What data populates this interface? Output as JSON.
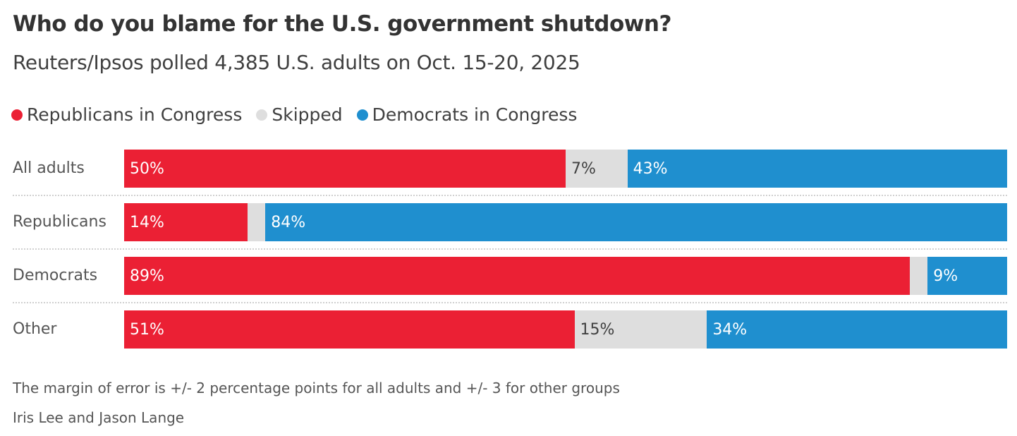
{
  "chart_data": {
    "type": "bar",
    "orientation": "horizontal-stacked",
    "title": "Who do you blame for the U.S. government shutdown?",
    "subtitle": "Reuters/Ipsos polled 4,385 U.S. adults on Oct. 15-20, 2025",
    "categories": [
      "All adults",
      "Republicans",
      "Democrats",
      "Other"
    ],
    "series": [
      {
        "name": "Republicans in Congress",
        "color": "#eb2034",
        "text_color": "#ffffff",
        "values": [
          50,
          14,
          89,
          51
        ],
        "labels": [
          "50%",
          "14%",
          "89%",
          "51%"
        ]
      },
      {
        "name": "Skipped",
        "color": "#dedede",
        "text_color": "#404040",
        "values": [
          7,
          2,
          2,
          15
        ],
        "labels": [
          "7%",
          "",
          "",
          "15%"
        ]
      },
      {
        "name": "Democrats in Congress",
        "color": "#1f8fcf",
        "text_color": "#ffffff",
        "values": [
          43,
          84,
          9,
          34
        ],
        "labels": [
          "43%",
          "84%",
          "9%",
          "34%"
        ]
      }
    ],
    "xlim": [
      0,
      100
    ],
    "legend": "top-left",
    "grid": false
  },
  "footer": {
    "note": "The margin of error is +/- 2 percentage points for all adults and +/- 3 for other groups",
    "credit": "Iris Lee and Jason Lange"
  }
}
